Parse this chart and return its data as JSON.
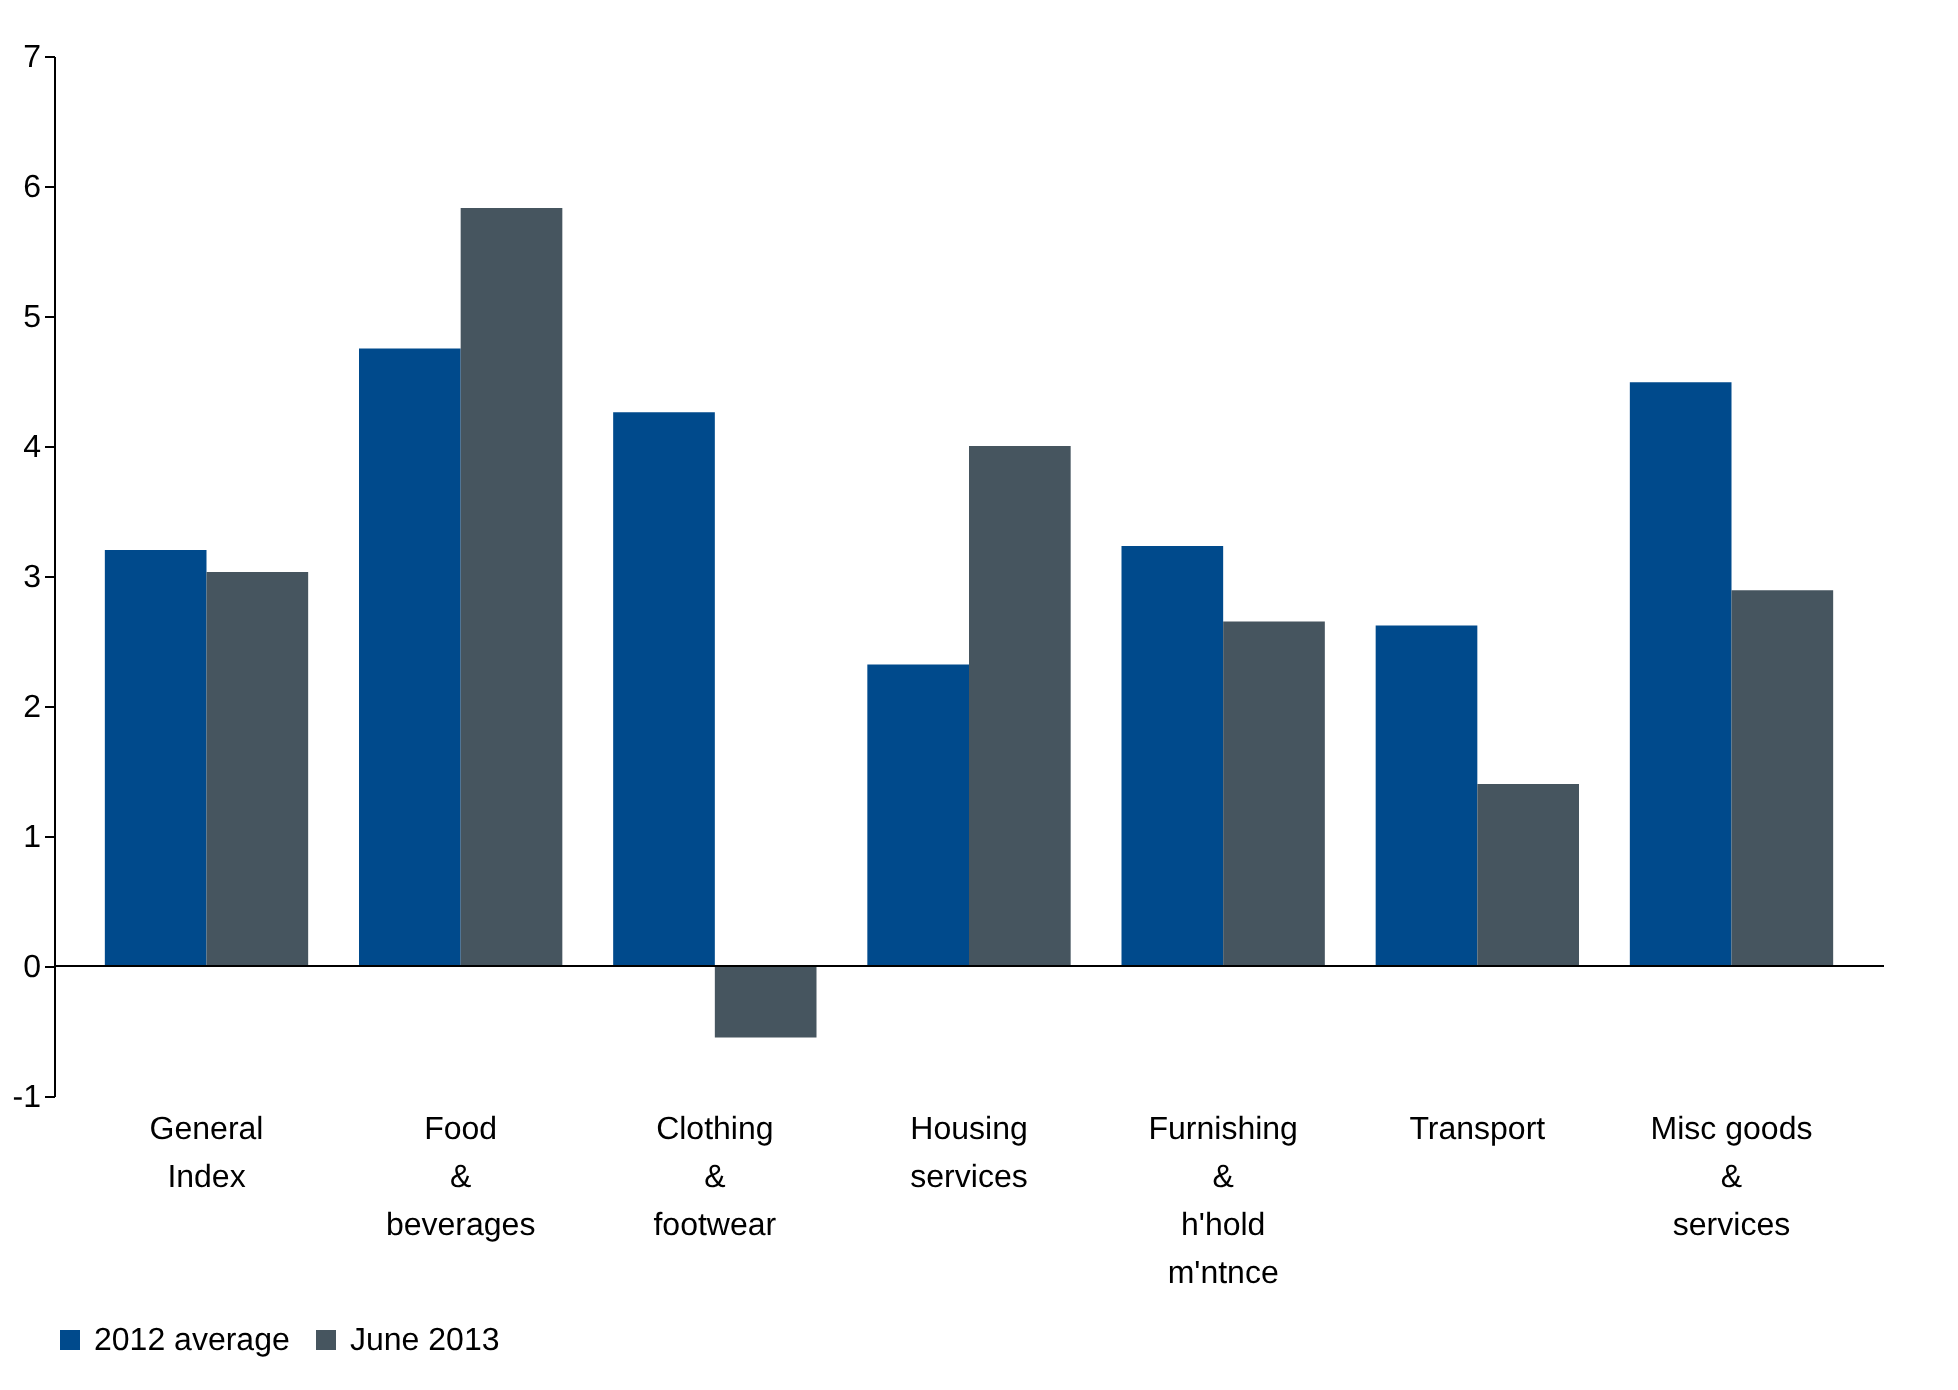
{
  "chart_data": {
    "type": "bar",
    "categories": [
      "General\nIndex",
      "Food\n&\nbeverages",
      "Clothing\n&\nfootwear",
      "Housing\nservices",
      "Furnishing\n&\nh'hold\nm'ntnce",
      "Transport",
      "Misc goods\n&\nservices"
    ],
    "series": [
      {
        "name": "2012 average",
        "color": "#004a8c",
        "values": [
          3.2,
          4.75,
          4.26,
          2.32,
          3.23,
          2.62,
          4.49
        ]
      },
      {
        "name": "June 2013",
        "color": "#46555f",
        "values": [
          3.03,
          5.83,
          -0.55,
          4.0,
          2.65,
          1.4,
          2.89
        ]
      }
    ],
    "ylim": [
      -1,
      7
    ],
    "yticks": [
      -1,
      0,
      1,
      2,
      3,
      4,
      5,
      6,
      7
    ],
    "legend": "bottom"
  }
}
